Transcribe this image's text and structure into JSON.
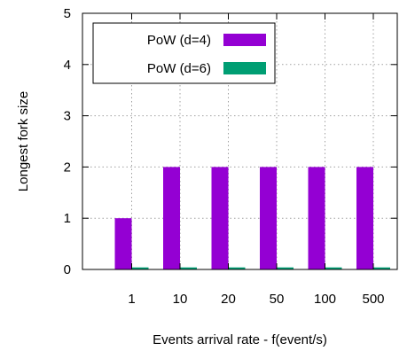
{
  "chart_data": {
    "type": "bar",
    "categories": [
      "1",
      "10",
      "20",
      "50",
      "100",
      "500"
    ],
    "series": [
      {
        "name": "PoW (d=4)",
        "values": [
          1,
          2,
          2,
          2,
          2,
          2
        ],
        "color": "#9400d3"
      },
      {
        "name": "PoW (d=6)",
        "values": [
          0.04,
          0.04,
          0.04,
          0.04,
          0.04,
          0.04
        ],
        "color": "#009e73"
      }
    ],
    "xlabel": "Events arrival rate - f(event/s)",
    "ylabel": "Longest fork size",
    "ylim": [
      0,
      5
    ],
    "yticks": [
      "0",
      "1",
      "2",
      "3",
      "4",
      "5"
    ],
    "grid": true,
    "legend_position": "top-left"
  }
}
